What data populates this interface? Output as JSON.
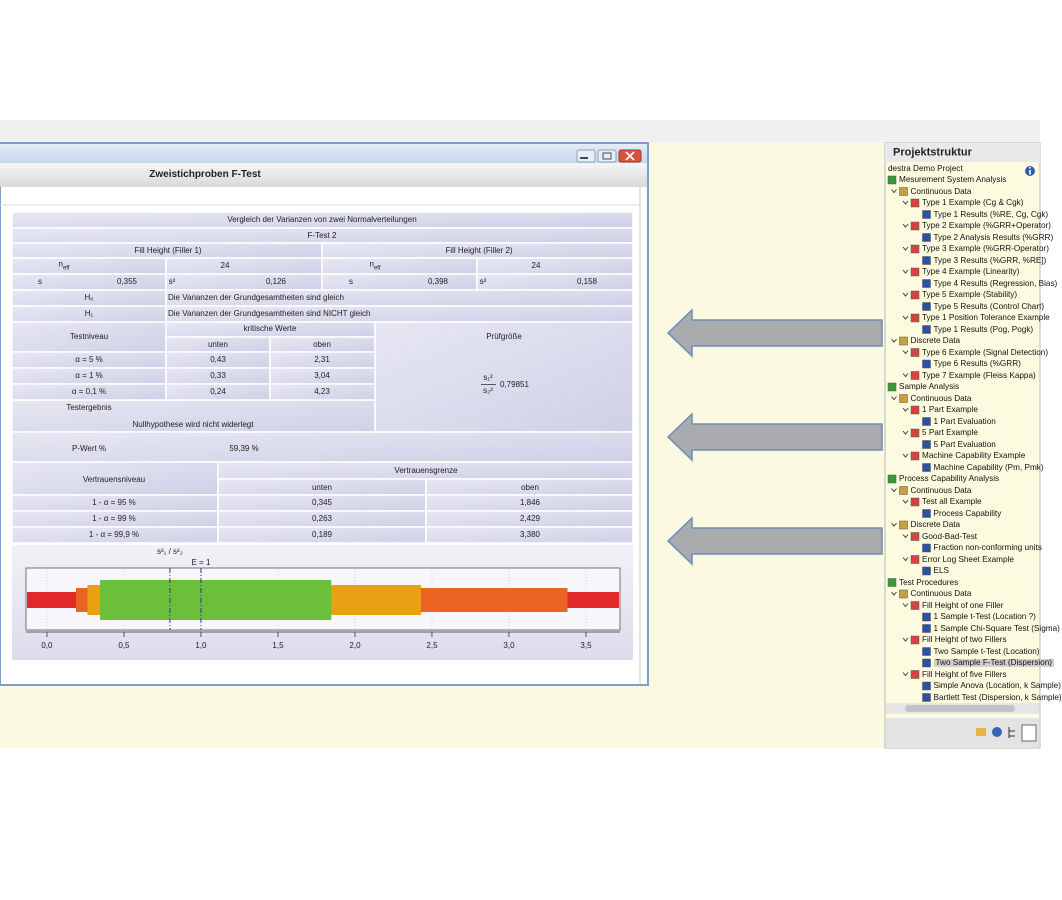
{
  "window": {
    "title": "Zweistichproben F-Test"
  },
  "report": {
    "heading": "Vergleich der Varianzen von zwei Normalverteilungen",
    "test": "F-Test 2",
    "n_label": {
      "base": "n",
      "sub": "eff"
    },
    "s_label": "s",
    "s2_label": "s²",
    "groups": [
      {
        "name": "Fill Height (Filler 1)",
        "n": "24",
        "s": "0,355",
        "s2": "0,126"
      },
      {
        "name": "Fill Height (Filler 2)",
        "n": "24",
        "s": "0,398",
        "s2": "0,158"
      }
    ],
    "hypotheses": [
      {
        "label": "H₀",
        "text": "Die Varianzen der Grundgesamtheiten sind gleich"
      },
      {
        "label": "H₁",
        "text": "Die Varianzen der Grundgesamtheiten sind NICHT gleich"
      }
    ],
    "level_header": "Testniveau",
    "critical_header": "kritische Werte",
    "critical_lower": "unten",
    "critical_upper": "oben",
    "statistic_header": "Prüfgröße",
    "levels": [
      {
        "label": "α = 5  %",
        "lower": "0,43",
        "upper": "2,31"
      },
      {
        "label": "α = 1  %",
        "lower": "0,33",
        "upper": "3,04"
      },
      {
        "label": "α = 0,1 %",
        "lower": "0,24",
        "upper": "4,23"
      }
    ],
    "statistic": {
      "num": "s₁²",
      "den": "s₂²",
      "value": "0,79851"
    },
    "result_header": "Testergebnis",
    "result": "Nullhypothese wird nicht widerlegt",
    "p_label": "P-Wert %",
    "p_value": "59,39 %",
    "confidence_header": "Vertrauensniveau",
    "limit_header": "Vertrauensgrenze",
    "limit_lower": "unten",
    "limit_upper": "oben",
    "confidence": [
      {
        "label": "1 - α = 95  %",
        "lower": "0,345",
        "upper": "1,846"
      },
      {
        "label": "1 - α = 99  %",
        "lower": "0,263",
        "upper": "2,429"
      },
      {
        "label": "1 - α = 99,9 %",
        "lower": "0,189",
        "upper": "3,380"
      }
    ]
  },
  "chart_data": {
    "type": "interval",
    "xlim": [
      -0.136,
      3.721
    ],
    "xticks": [
      {
        "value": 0,
        "label": "0,0"
      },
      {
        "value": 0.5,
        "label": "0,5"
      },
      {
        "value": 1,
        "label": "1,0"
      },
      {
        "value": 1.5,
        "label": "1,5"
      },
      {
        "value": 2,
        "label": "2,0"
      },
      {
        "value": 2.5,
        "label": "2,5"
      },
      {
        "value": 3,
        "label": "3,0"
      },
      {
        "value": 3.5,
        "label": "3,5"
      }
    ],
    "grid": true,
    "background_color": "#e22a2a",
    "intervals": [
      {
        "low": 0.189,
        "high": 3.38,
        "color": "#ea6424"
      },
      {
        "low": 0.263,
        "high": 2.429,
        "color": "#e9a012"
      },
      {
        "low": 0.345,
        "high": 1.846,
        "color": "#6cbf3a"
      }
    ],
    "statistic": 0.79851,
    "statistic_label": "s²₁ / s²₂",
    "reference": 1,
    "reference_label": "E = 1"
  },
  "panel": {
    "title": "Projektstruktur",
    "root": "destra Demo Project",
    "selected": 42,
    "items": [
      {
        "label": "Mesurement System Analysis",
        "level": 0
      },
      {
        "label": "Continuous Data",
        "level": 1
      },
      {
        "label": "Type 1 Example (Cg & Cgk)",
        "level": 2
      },
      {
        "label": "Type 1 Results (%RE, Cg, Cgk)",
        "level": 3
      },
      {
        "label": "Type 2 Example (%GRR+Operator)",
        "level": 2
      },
      {
        "label": "Type 2 Analysis Results (%GRR)",
        "level": 3
      },
      {
        "label": "Type 3 Example (%GRR-Operator)",
        "level": 2
      },
      {
        "label": "Type 3 Results (%GRR, %RE])",
        "level": 3
      },
      {
        "label": "Type 4 Example (Linearity)",
        "level": 2
      },
      {
        "label": "Type 4 Results (Regression, Bias)",
        "level": 3
      },
      {
        "label": "Type 5 Example (Stability)",
        "level": 2
      },
      {
        "label": "Type 5 Results (Control Chart)",
        "level": 3
      },
      {
        "label": "Type 1 Position Tolerance Example",
        "level": 2
      },
      {
        "label": "Type 1 Results (Pog, Pogk)",
        "level": 3
      },
      {
        "label": "Discrete Data",
        "level": 1
      },
      {
        "label": "Type 6 Example (Signal Detection)",
        "level": 2
      },
      {
        "label": "Type 6 Results (%GRR)",
        "level": 3
      },
      {
        "label": "Type 7 Example (Fleiss Kappa)",
        "level": 2
      },
      {
        "label": "Sample Analysis",
        "level": 0
      },
      {
        "label": "Continuous Data",
        "level": 1
      },
      {
        "label": "1 Part Example",
        "level": 2
      },
      {
        "label": "1 Part Evaluation",
        "level": 3
      },
      {
        "label": "5 Part Example",
        "level": 2
      },
      {
        "label": "5 Part Evaluation",
        "level": 3
      },
      {
        "label": "Machine Capability Example",
        "level": 2
      },
      {
        "label": "Machine Capability (Pm, Pmk)",
        "level": 3
      },
      {
        "label": "Process Capability Analysis",
        "level": 0
      },
      {
        "label": "Continuous Data",
        "level": 1
      },
      {
        "label": "Test all Example",
        "level": 2
      },
      {
        "label": "Process Capability",
        "level": 3
      },
      {
        "label": "Discrete Data",
        "level": 1
      },
      {
        "label": "Good-Bad-Test",
        "level": 2
      },
      {
        "label": "Fraction non-conforming units",
        "level": 3
      },
      {
        "label": "Error Log Sheet Example",
        "level": 2
      },
      {
        "label": "ELS",
        "level": 3
      },
      {
        "label": "Test Procedures",
        "level": 0
      },
      {
        "label": "Continuous Data",
        "level": 1
      },
      {
        "label": "Fill Height of one Filler",
        "level": 2
      },
      {
        "label": "1 Sample t-Test (Location ?)",
        "level": 3
      },
      {
        "label": "1 Sample Chi-Square Test (Sigma)",
        "level": 3
      },
      {
        "label": "Fill Height of two Fillers",
        "level": 2
      },
      {
        "label": "Two Sample t-Test (Location)",
        "level": 3
      },
      {
        "label": "Two Sample F-Test (Dispersion)",
        "level": 3
      },
      {
        "label": "Fill Height of five Fillers",
        "level": 2
      },
      {
        "label": "Simple Anova (Location, k Sample)",
        "level": 3
      },
      {
        "label": "Bartlett Test (Dispersion, k Sample)",
        "level": 3
      }
    ]
  }
}
